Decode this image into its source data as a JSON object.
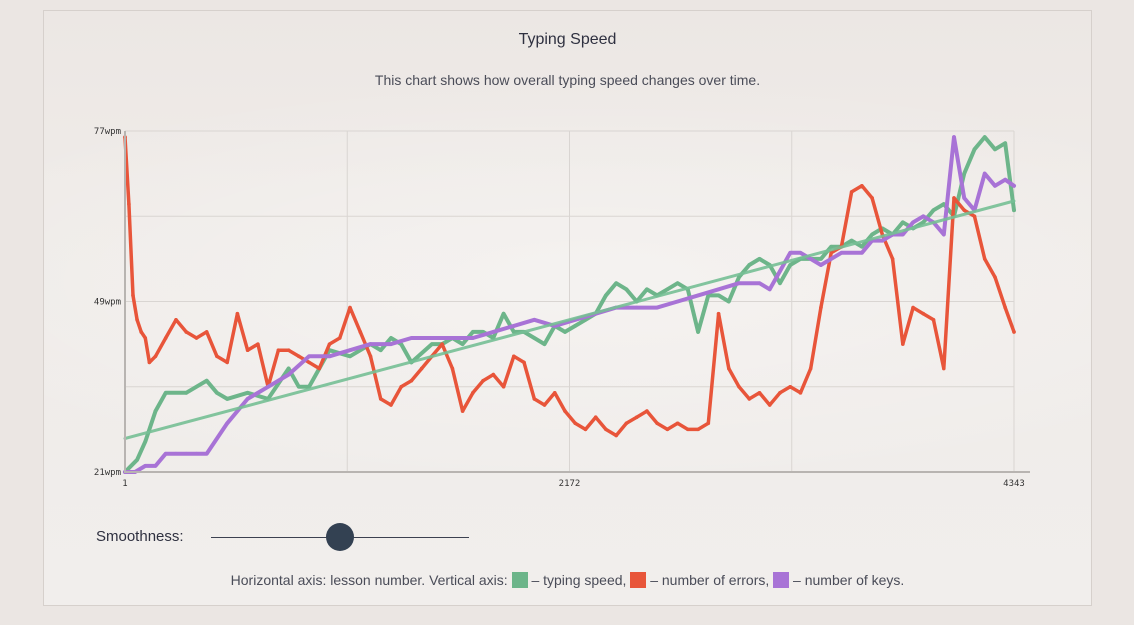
{
  "title": "Typing Speed",
  "subtitle": "This chart shows how overall typing speed changes over time.",
  "smoothness": {
    "label": "Smoothness:",
    "value": 0.5
  },
  "legend": {
    "prefix": "Horizontal axis: lesson number. Vertical axis:",
    "speed": "– typing speed,",
    "errors": "– number of errors,",
    "keys": "– number of keys."
  },
  "colors": {
    "speed": "#6db58a",
    "errors": "#e8553a",
    "keys": "#a873d6",
    "trend": "#76bf95",
    "grid": "#d9d5d2",
    "axis": "#b8b4b1"
  },
  "chart_data": {
    "type": "line",
    "xlim": [
      1,
      4343
    ],
    "ylim": [
      21,
      77
    ],
    "y_ticks": [
      "77wpm",
      "49wpm",
      "21wpm"
    ],
    "x_ticks": [
      "1",
      "2172",
      "4343"
    ],
    "grid": true,
    "series": [
      {
        "key": "speed",
        "x": [
          1,
          60,
          100,
          150,
          200,
          300,
          400,
          450,
          500,
          600,
          700,
          800,
          850,
          900,
          950,
          1000,
          1100,
          1200,
          1250,
          1300,
          1350,
          1400,
          1500,
          1550,
          1600,
          1650,
          1700,
          1750,
          1800,
          1850,
          1900,
          1950,
          2000,
          2050,
          2100,
          2150,
          2200,
          2250,
          2300,
          2350,
          2400,
          2450,
          2500,
          2550,
          2600,
          2650,
          2700,
          2750,
          2800,
          2850,
          2900,
          2950,
          3000,
          3050,
          3100,
          3150,
          3200,
          3250,
          3300,
          3350,
          3400,
          3450,
          3500,
          3550,
          3600,
          3650,
          3700,
          3750,
          3800,
          3850,
          3900,
          3950,
          4000,
          4050,
          4100,
          4150,
          4200,
          4250,
          4300,
          4343
        ],
        "y": [
          21,
          23,
          26,
          31,
          34,
          34,
          36,
          34,
          33,
          34,
          33,
          38,
          35,
          35,
          38,
          41,
          40,
          42,
          41,
          43,
          42,
          39,
          42,
          42,
          43,
          42,
          44,
          44,
          43,
          47,
          44,
          44,
          43,
          42,
          45,
          44,
          45,
          46,
          47,
          50,
          52,
          51,
          49,
          51,
          50,
          51,
          52,
          51,
          44,
          50,
          50,
          49,
          53,
          55,
          56,
          55,
          52,
          55,
          56,
          56,
          56,
          58,
          58,
          59,
          58,
          60,
          61,
          60,
          62,
          61,
          62,
          64,
          65,
          63,
          70,
          74,
          76,
          74,
          75,
          64
        ]
      },
      {
        "key": "errors",
        "x": [
          1,
          20,
          40,
          60,
          80,
          100,
          120,
          150,
          200,
          250,
          300,
          350,
          400,
          450,
          500,
          550,
          600,
          650,
          700,
          750,
          800,
          850,
          900,
          950,
          1000,
          1050,
          1100,
          1150,
          1200,
          1250,
          1300,
          1350,
          1400,
          1450,
          1500,
          1550,
          1600,
          1650,
          1700,
          1750,
          1800,
          1850,
          1900,
          1950,
          2000,
          2050,
          2100,
          2150,
          2200,
          2250,
          2300,
          2350,
          2400,
          2450,
          2500,
          2550,
          2600,
          2650,
          2700,
          2750,
          2800,
          2850,
          2900,
          2950,
          3000,
          3050,
          3100,
          3150,
          3200,
          3250,
          3300,
          3350,
          3400,
          3450,
          3500,
          3550,
          3600,
          3650,
          3700,
          3750,
          3800,
          3850,
          3900,
          3950,
          4000,
          4050,
          4100,
          4150,
          4200,
          4250,
          4300,
          4343
        ],
        "y": [
          76,
          65,
          50,
          46,
          44,
          43,
          39,
          40,
          43,
          46,
          44,
          43,
          44,
          40,
          39,
          47,
          41,
          42,
          35,
          41,
          41,
          40,
          39,
          38,
          42,
          43,
          48,
          44,
          40,
          33,
          32,
          35,
          36,
          38,
          40,
          42,
          38,
          31,
          34,
          36,
          37,
          35,
          40,
          39,
          33,
          32,
          34,
          31,
          29,
          28,
          30,
          28,
          27,
          29,
          30,
          31,
          29,
          28,
          29,
          28,
          28,
          29,
          47,
          38,
          35,
          33,
          34,
          32,
          34,
          35,
          34,
          38,
          48,
          57,
          58,
          67,
          68,
          66,
          60,
          56,
          42,
          48,
          47,
          46,
          38,
          66,
          64,
          63,
          56,
          53,
          48,
          44
        ]
      },
      {
        "key": "keys",
        "x": [
          1,
          50,
          100,
          150,
          200,
          250,
          300,
          350,
          400,
          500,
          600,
          700,
          800,
          900,
          1000,
          1100,
          1200,
          1300,
          1400,
          1500,
          1600,
          1700,
          1800,
          1900,
          2000,
          2100,
          2200,
          2300,
          2400,
          2500,
          2600,
          2700,
          2800,
          2900,
          3000,
          3100,
          3150,
          3200,
          3250,
          3300,
          3400,
          3500,
          3600,
          3650,
          3700,
          3750,
          3800,
          3850,
          3900,
          3950,
          4000,
          4050,
          4100,
          4150,
          4200,
          4250,
          4300,
          4343
        ],
        "y": [
          21,
          21,
          22,
          22,
          24,
          24,
          24,
          24,
          24,
          29,
          33,
          35,
          37,
          40,
          40,
          41,
          42,
          42,
          43,
          43,
          43,
          43,
          44,
          45,
          46,
          45,
          46,
          47,
          48,
          48,
          48,
          49,
          50,
          51,
          52,
          52,
          51,
          54,
          57,
          57,
          55,
          57,
          57,
          59,
          59,
          60,
          60,
          62,
          63,
          62,
          60,
          76,
          66,
          64,
          70,
          68,
          69,
          68
        ]
      },
      {
        "key": "trend",
        "x": [
          1,
          4343
        ],
        "y": [
          26.5,
          65.5
        ]
      }
    ]
  }
}
